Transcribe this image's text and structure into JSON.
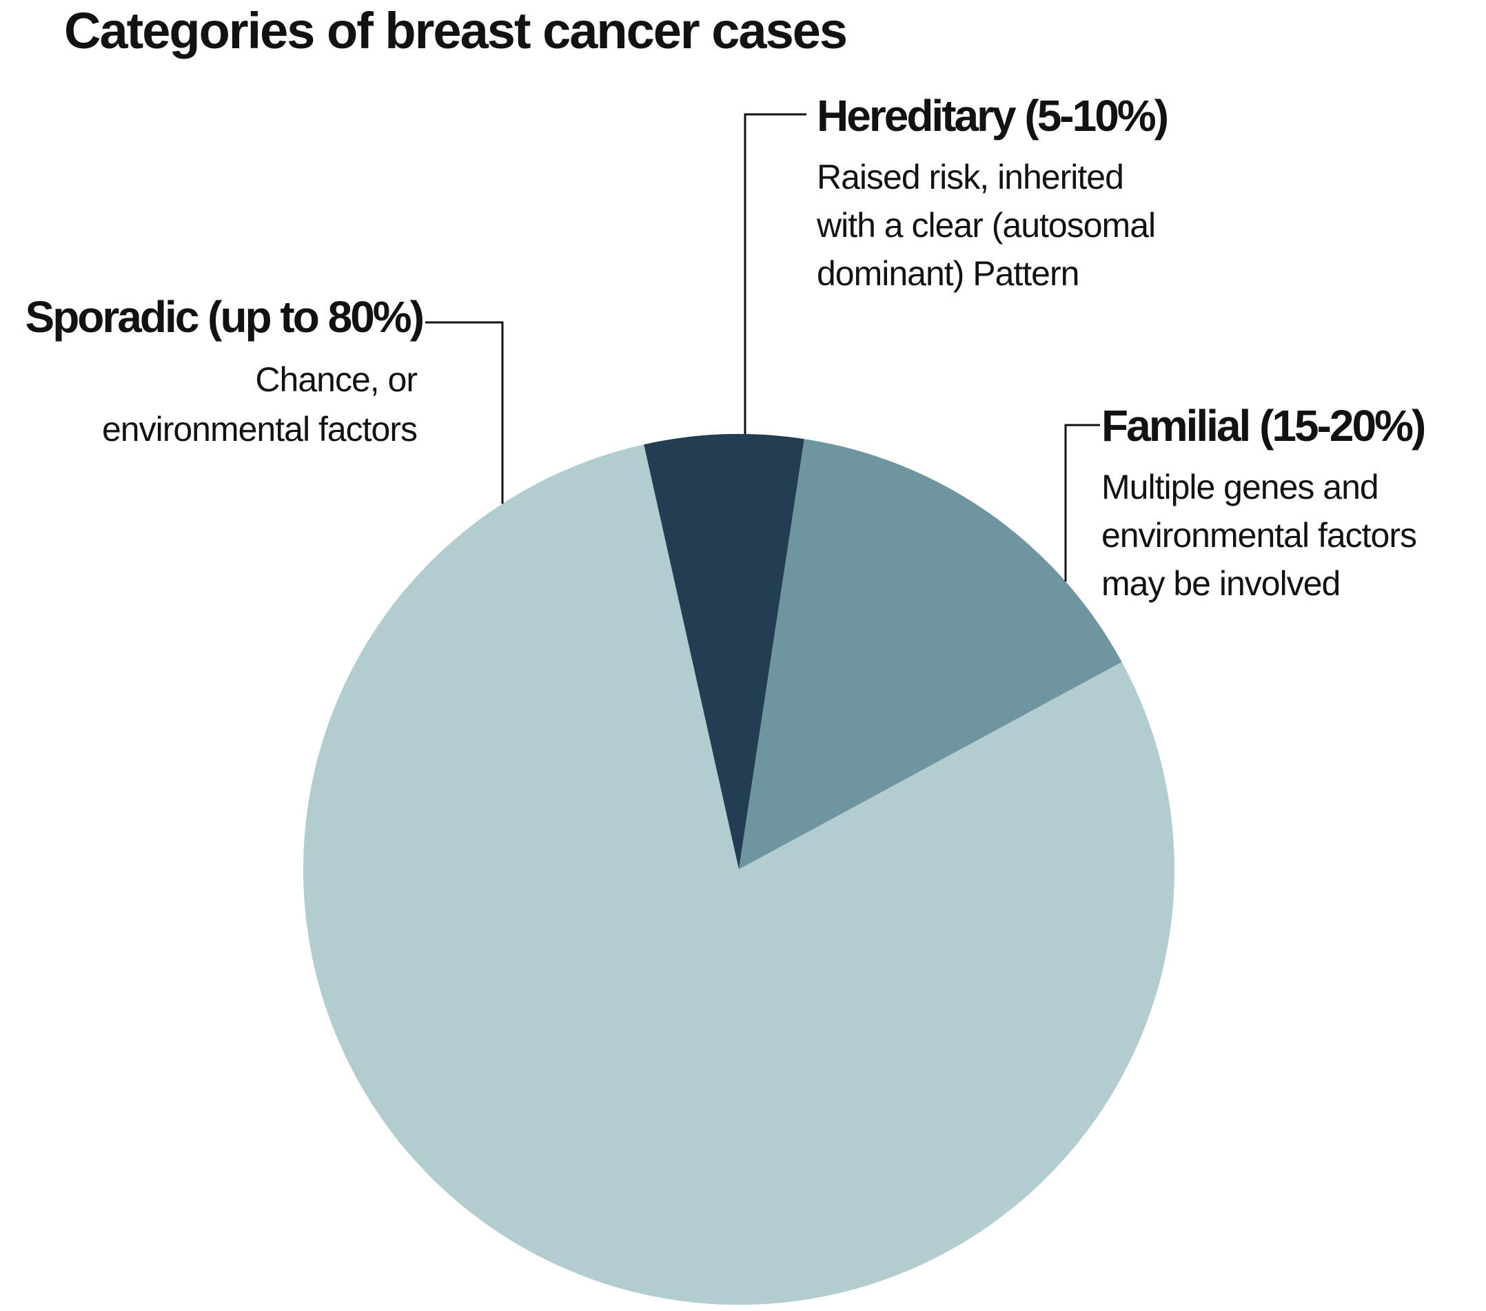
{
  "figure": {
    "background": "#ffffff",
    "text_color": "#121212",
    "line_color": "#121212",
    "title": "Categories of breast cancer cases"
  },
  "chart_data": {
    "type": "pie",
    "title": "Categories of breast cancer cases",
    "legend": "none - direct callout labels with elbow leader lines",
    "start_angle_deg": -12.6,
    "slices": [
      {
        "name": "Hereditary",
        "label": "Hereditary (5-10%)",
        "percent_text": "5-10%",
        "drawn_percent": 5.9,
        "color": "#233E52",
        "description": "Raised risk, inherited with a clear (autosomal dominant) Pattern"
      },
      {
        "name": "Familial",
        "label": "Familial (15-20%)",
        "percent_text": "15-20%",
        "drawn_percent": 14.7,
        "color": "#6F96A0",
        "description": "Multiple genes and environmental factors may be involved"
      },
      {
        "name": "Sporadic",
        "label": "Sporadic (up to 80%)",
        "percent_text": "up to 80%",
        "drawn_percent": 79.4,
        "color": "#B3CCD0",
        "description": "Chance, or environmental factors"
      }
    ]
  },
  "callouts": {
    "hereditary": {
      "title": "Hereditary (5-10%)",
      "lines": [
        "Raised risk, inherited",
        "with a clear (autosomal",
        "dominant) Pattern"
      ]
    },
    "sporadic": {
      "title": "Sporadic (up to 80%)",
      "lines": [
        "Chance, or",
        "environmental factors"
      ]
    },
    "familial": {
      "title": "Familial (15-20%)",
      "lines": [
        "Multiple genes and",
        "environmental factors",
        "may be involved"
      ]
    }
  }
}
